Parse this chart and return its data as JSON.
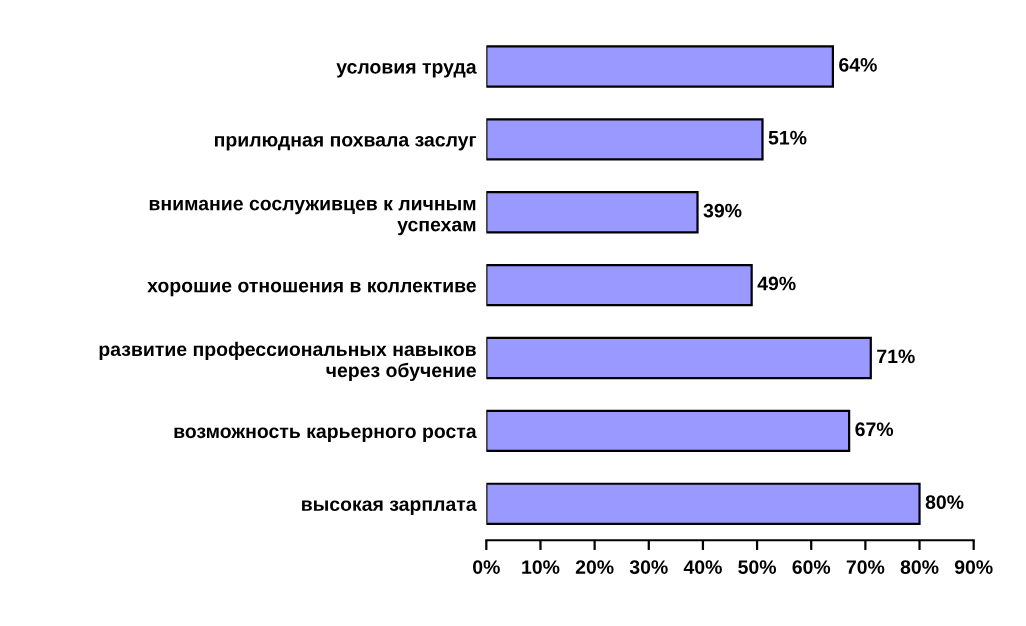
{
  "chart_data": {
    "type": "bar",
    "orientation": "horizontal",
    "categories": [
      "условия труда",
      "прилюдная похвала заслуг",
      "внимание сослуживцев к личным\nуспехам",
      "хорошие отношения в коллективе",
      "развитие профессиональных навыков\nчерез обучение",
      "возможность карьерного роста",
      "высокая зарплата"
    ],
    "values": [
      64,
      51,
      39,
      49,
      71,
      67,
      80
    ],
    "value_labels": [
      "64%",
      "51%",
      "39%",
      "49%",
      "71%",
      "67%",
      "80%"
    ],
    "color": "#9999ff",
    "xlim": [
      0,
      90
    ],
    "xticks": [
      {
        "value": 0,
        "label": "0%"
      },
      {
        "value": 10,
        "label": "10%"
      },
      {
        "value": 20,
        "label": "20%"
      },
      {
        "value": 30,
        "label": "30%"
      },
      {
        "value": 40,
        "label": "40%"
      },
      {
        "value": 50,
        "label": "50%"
      },
      {
        "value": 60,
        "label": "60%"
      },
      {
        "value": 70,
        "label": "70%"
      },
      {
        "value": 80,
        "label": "80%"
      },
      {
        "value": 90,
        "label": "90%"
      }
    ],
    "grid": false
  }
}
